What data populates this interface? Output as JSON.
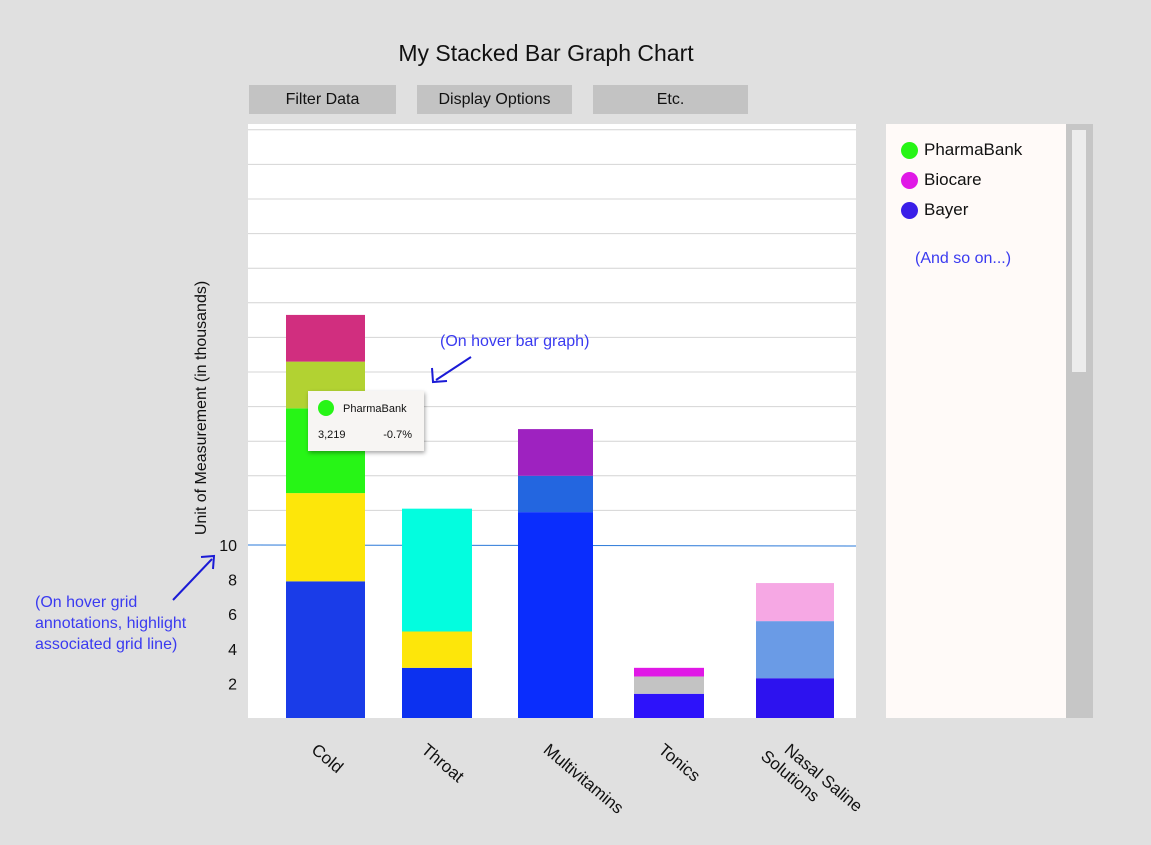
{
  "title": "My Stacked Bar Graph Chart",
  "toolbar": {
    "filter_label": "Filter Data",
    "display_label": "Display Options",
    "etc_label": "Etc."
  },
  "legend": {
    "items": [
      {
        "label": "PharmaBank",
        "color": "#27f516"
      },
      {
        "label": "Biocare",
        "color": "#e018e6"
      },
      {
        "label": "Bayer",
        "color": "#3a1ee8"
      }
    ],
    "more": "(And so on...)"
  },
  "tooltip": {
    "series": "PharmaBank",
    "color": "#27f516",
    "value": "3,219",
    "change": "-0.7%"
  },
  "annotations": {
    "bar_hover": "(On  hover bar graph)",
    "grid_hover_lines": [
      "(On hover grid",
      "annotations, highlight",
      "associated grid line)"
    ]
  },
  "highlight_gridline_value": 10,
  "chart_data": {
    "type": "bar",
    "stacked": true,
    "title": "My Stacked Bar Graph Chart",
    "xlabel": "",
    "ylabel": "Unit of Measurement (in thousands)",
    "y_ticks": [
      2,
      4,
      6,
      8,
      10
    ],
    "ylim": [
      0,
      34
    ],
    "grid": true,
    "legend_position": "right",
    "categories": [
      "Cold",
      "Throat",
      "Multivitamins",
      "Tonics",
      "Nasal Saline Solutions"
    ],
    "category_labels": [
      [
        "Cold"
      ],
      [
        "Throat"
      ],
      [
        "Multivitamins"
      ],
      [
        "Tonics"
      ],
      [
        "Nasal Saline",
        "Solutions"
      ]
    ],
    "stacks": [
      {
        "category": "Cold",
        "segments": [
          {
            "value": 7.9,
            "color": "#1a3ce8"
          },
          {
            "value": 5.1,
            "color": "#fde60a"
          },
          {
            "value": 4.9,
            "color": "#27f516"
          },
          {
            "value": 2.7,
            "color": "#b2d232"
          },
          {
            "value": 2.7,
            "color": "#d12e7f"
          }
        ]
      },
      {
        "category": "Throat",
        "segments": [
          {
            "value": 2.9,
            "color": "#0c31f0"
          },
          {
            "value": 2.1,
            "color": "#fde60a"
          },
          {
            "value": 7.1,
            "color": "#03fddf"
          }
        ]
      },
      {
        "category": "Multivitamins",
        "segments": [
          {
            "value": 11.9,
            "color": "#0a2dfd"
          },
          {
            "value": 2.1,
            "color": "#2366e0"
          },
          {
            "value": 2.7,
            "color": "#9e22c0"
          }
        ]
      },
      {
        "category": "Tonics",
        "segments": [
          {
            "value": 1.4,
            "color": "#2d12fa"
          },
          {
            "value": 1.0,
            "color": "#c3c3c3"
          },
          {
            "value": 0.5,
            "color": "#e018e6"
          }
        ]
      },
      {
        "category": "Nasal Saline Solutions",
        "segments": [
          {
            "value": 2.3,
            "color": "#2d12ef"
          },
          {
            "value": 3.3,
            "color": "#6a9be6"
          },
          {
            "value": 2.2,
            "color": "#f6a8e4"
          }
        ]
      }
    ]
  }
}
